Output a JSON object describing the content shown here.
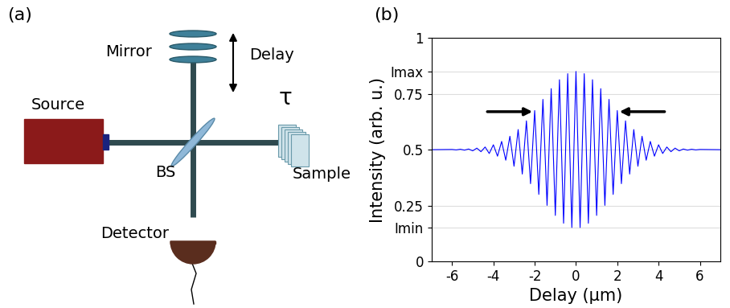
{
  "diagram": {
    "label": "(a)",
    "components": {
      "source": "Source",
      "mirror": "Mirror",
      "delay": "Delay",
      "splitter": "BS",
      "delay_symbol": "τ",
      "sample": "Sample",
      "detector": "Detector"
    }
  },
  "chart_data": {
    "type": "line",
    "label": "(b)",
    "x_label": "Delay (µm)",
    "y_label": "Intensity (arb. u.)",
    "x": [
      -7,
      -6,
      -5.8,
      -5.6,
      -5.4,
      -5.2,
      -5,
      -4.8,
      -4.6,
      -4.4,
      -4.2,
      -4,
      -3.8,
      -3.6,
      -3.4,
      -3.2,
      -3,
      -2.8,
      -2.6,
      -2.4,
      -2.2,
      -2,
      -1.8,
      -1.6,
      -1.4,
      -1.2,
      -1,
      -0.8,
      -0.6,
      -0.4,
      -0.2,
      0,
      0.2,
      0.4,
      0.6,
      0.8,
      1,
      1.2,
      1.4,
      1.6,
      1.8,
      2,
      2.2,
      2.4,
      2.6,
      2.8,
      3,
      3.2,
      3.4,
      3.6,
      3.8,
      4,
      4.2,
      4.4,
      4.6,
      4.8,
      5,
      5.2,
      5.4,
      5.6,
      5.8,
      6,
      7
    ],
    "values": [
      0.5,
      0.501,
      0.499,
      0.502,
      0.498,
      0.503,
      0.495,
      0.507,
      0.491,
      0.512,
      0.483,
      0.522,
      0.471,
      0.537,
      0.453,
      0.56,
      0.426,
      0.59,
      0.391,
      0.629,
      0.348,
      0.675,
      0.3,
      0.725,
      0.251,
      0.773,
      0.206,
      0.813,
      0.171,
      0.84,
      0.152,
      0.85,
      0.152,
      0.84,
      0.171,
      0.813,
      0.206,
      0.773,
      0.251,
      0.725,
      0.3,
      0.675,
      0.348,
      0.629,
      0.391,
      0.59,
      0.426,
      0.56,
      0.453,
      0.537,
      0.471,
      0.522,
      0.483,
      0.512,
      0.491,
      0.507,
      0.495,
      0.503,
      0.498,
      0.502,
      0.499,
      0.501,
      0.5
    ],
    "color": "#0000ff",
    "xlim": [
      -7,
      7
    ],
    "xticks": [
      -6,
      -4,
      -2,
      0,
      2,
      4,
      6
    ],
    "ylim": [
      0,
      1
    ],
    "yticks": [
      0,
      0.25,
      {
        "value": 0.15,
        "label": "Imin"
      },
      0.5,
      0.75,
      {
        "value": 0.85,
        "label": "Imax"
      },
      1
    ],
    "grid": true,
    "fwhm_markers": {
      "y": 0.67,
      "from": [
        -4.4,
        4.4
      ],
      "to": [
        -2,
        2
      ]
    }
  }
}
